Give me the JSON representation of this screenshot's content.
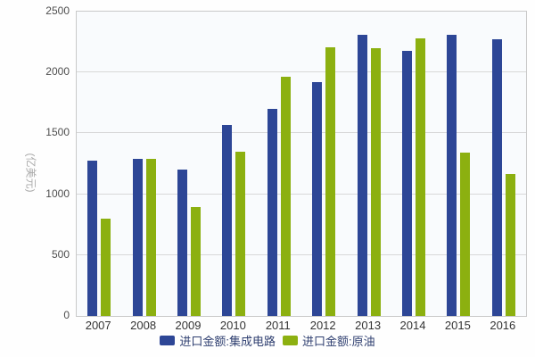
{
  "chart_data": {
    "type": "bar",
    "title": "",
    "xlabel": "",
    "ylabel": "(亿美元)",
    "ylim": [
      0,
      2500
    ],
    "yticks": [
      0,
      500,
      1000,
      1500,
      2000,
      2500
    ],
    "grid": true,
    "legend_position": "bottom",
    "categories": [
      "2007",
      "2008",
      "2009",
      "2010",
      "2011",
      "2012",
      "2013",
      "2014",
      "2015",
      "2016"
    ],
    "series": [
      {
        "name": "进口金额:集成电路",
        "key": "ic",
        "color": "#2d4696",
        "values": [
          1277,
          1289,
          1199,
          1570,
          1702,
          1921,
          2313,
          2176,
          2307,
          2271
        ]
      },
      {
        "name": "进口金额:原油",
        "key": "crude-oil",
        "color": "#8cb010",
        "values": [
          797,
          1293,
          893,
          1352,
          1967,
          2206,
          2196,
          2283,
          1344,
          1165
        ]
      }
    ]
  }
}
